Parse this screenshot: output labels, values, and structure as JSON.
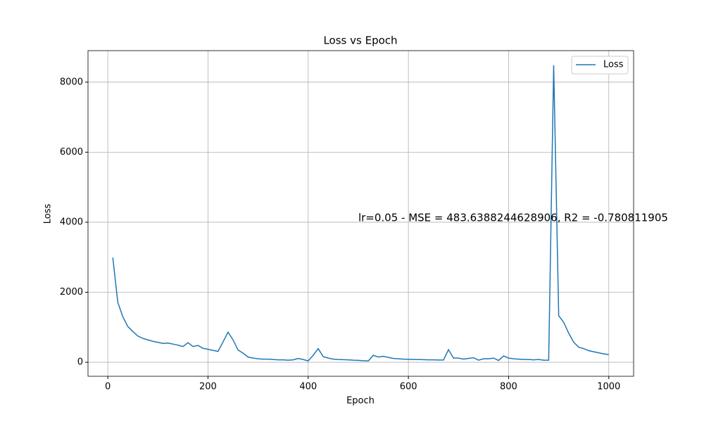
{
  "chart_data": {
    "type": "line",
    "title": "Loss vs Epoch",
    "x_label": "Epoch",
    "y_label": "Loss",
    "x": [
      10,
      20,
      30,
      40,
      50,
      60,
      70,
      80,
      90,
      100,
      110,
      120,
      130,
      140,
      150,
      160,
      170,
      180,
      190,
      200,
      210,
      220,
      230,
      240,
      250,
      260,
      270,
      280,
      290,
      300,
      310,
      320,
      330,
      340,
      350,
      360,
      370,
      380,
      390,
      400,
      410,
      420,
      430,
      440,
      450,
      460,
      470,
      480,
      490,
      500,
      510,
      520,
      530,
      540,
      550,
      560,
      570,
      580,
      590,
      600,
      610,
      620,
      630,
      640,
      650,
      660,
      670,
      680,
      690,
      700,
      710,
      720,
      730,
      740,
      750,
      760,
      770,
      780,
      790,
      800,
      810,
      820,
      830,
      840,
      850,
      860,
      870,
      880,
      890,
      900,
      910,
      920,
      930,
      940,
      950,
      960,
      970,
      980,
      990,
      1000
    ],
    "series": [
      {
        "name": "Loss",
        "color": "#1f77b4",
        "values": [
          2990,
          1710,
          1300,
          1020,
          880,
          750,
          680,
          640,
          600,
          570,
          540,
          550,
          520,
          490,
          450,
          560,
          450,
          480,
          400,
          370,
          340,
          310,
          580,
          860,
          640,
          350,
          260,
          150,
          120,
          100,
          90,
          90,
          80,
          70,
          70,
          60,
          70,
          110,
          80,
          40,
          200,
          390,
          160,
          120,
          90,
          80,
          75,
          70,
          60,
          55,
          45,
          40,
          200,
          150,
          170,
          140,
          110,
          100,
          90,
          85,
          80,
          80,
          75,
          70,
          70,
          65,
          65,
          360,
          120,
          120,
          90,
          110,
          130,
          60,
          100,
          100,
          120,
          50,
          180,
          120,
          100,
          90,
          80,
          80,
          70,
          80,
          60,
          60,
          8480,
          1330,
          1140,
          830,
          570,
          430,
          390,
          330,
          300,
          270,
          240,
          220
        ]
      }
    ],
    "xlim": [
      -39.5,
      1049.5
    ],
    "ylim": [
      -400,
      8900
    ],
    "xticks": [
      0,
      200,
      400,
      600,
      800,
      1000
    ],
    "yticks": [
      0,
      2000,
      4000,
      6000,
      8000
    ],
    "grid": true,
    "legend": "upper right",
    "annotation": {
      "text": "lr=0.05 - MSE = 483.6388244628906, R2 = -0.780811905",
      "x": 500,
      "y": 4000
    }
  }
}
